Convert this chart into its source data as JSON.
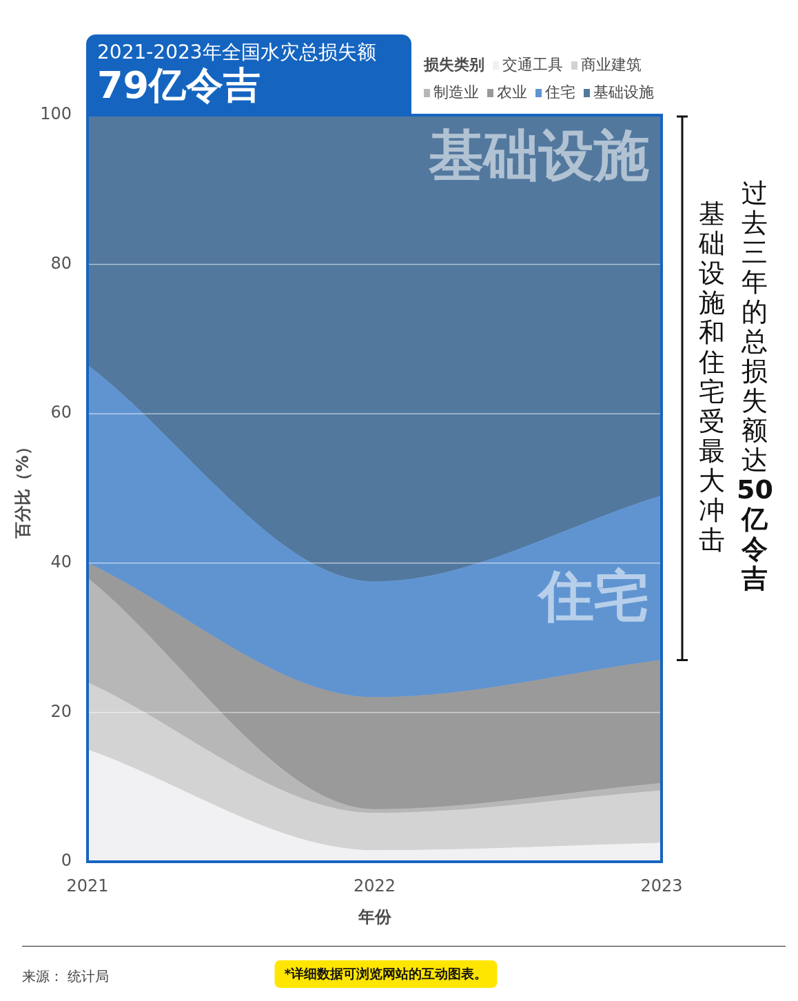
{
  "chart_data": {
    "type": "area",
    "title": "2021-2023年全国水灾总损失额",
    "subtitle": "79亿令吉",
    "xlabel": "年份",
    "ylabel": "百分比（%）",
    "legend_title": "损失类别",
    "categories": [
      "2021",
      "2022",
      "2023"
    ],
    "series": [
      {
        "name": "交通工具",
        "color": "#f1f0f2",
        "values": [
          15,
          1.5,
          2.5
        ]
      },
      {
        "name": "商业建筑",
        "color": "#d3d3d3",
        "values": [
          9,
          5,
          7
        ]
      },
      {
        "name": "制造业",
        "color": "#b7b7b7",
        "values": [
          14,
          0.5,
          1
        ]
      },
      {
        "name": "农业",
        "color": "#9a9a9a",
        "values": [
          2,
          15,
          16.5
        ]
      },
      {
        "name": "住宅",
        "color": "#6094d1",
        "values": [
          26.5,
          15.5,
          22
        ]
      },
      {
        "name": "基础设施",
        "color": "#52789e",
        "values": [
          33.5,
          62.5,
          51
        ]
      }
    ],
    "stacked": true,
    "ylim": [
      0,
      100
    ],
    "yticks": [
      0,
      20,
      40,
      60,
      80,
      100
    ],
    "grid": "y",
    "legend": "top right",
    "annotations": [
      {
        "text": "基础设施",
        "x": "2023",
        "y": 94
      },
      {
        "text": "住宅",
        "x": "2023",
        "y": 35
      },
      "过去三年的总损失额达",
      "50亿令吉",
      "基础设施和住宅受最大冲击",
      "来源： 统计局",
      "*详细数据可浏览网站的互动图表。"
    ]
  }
}
